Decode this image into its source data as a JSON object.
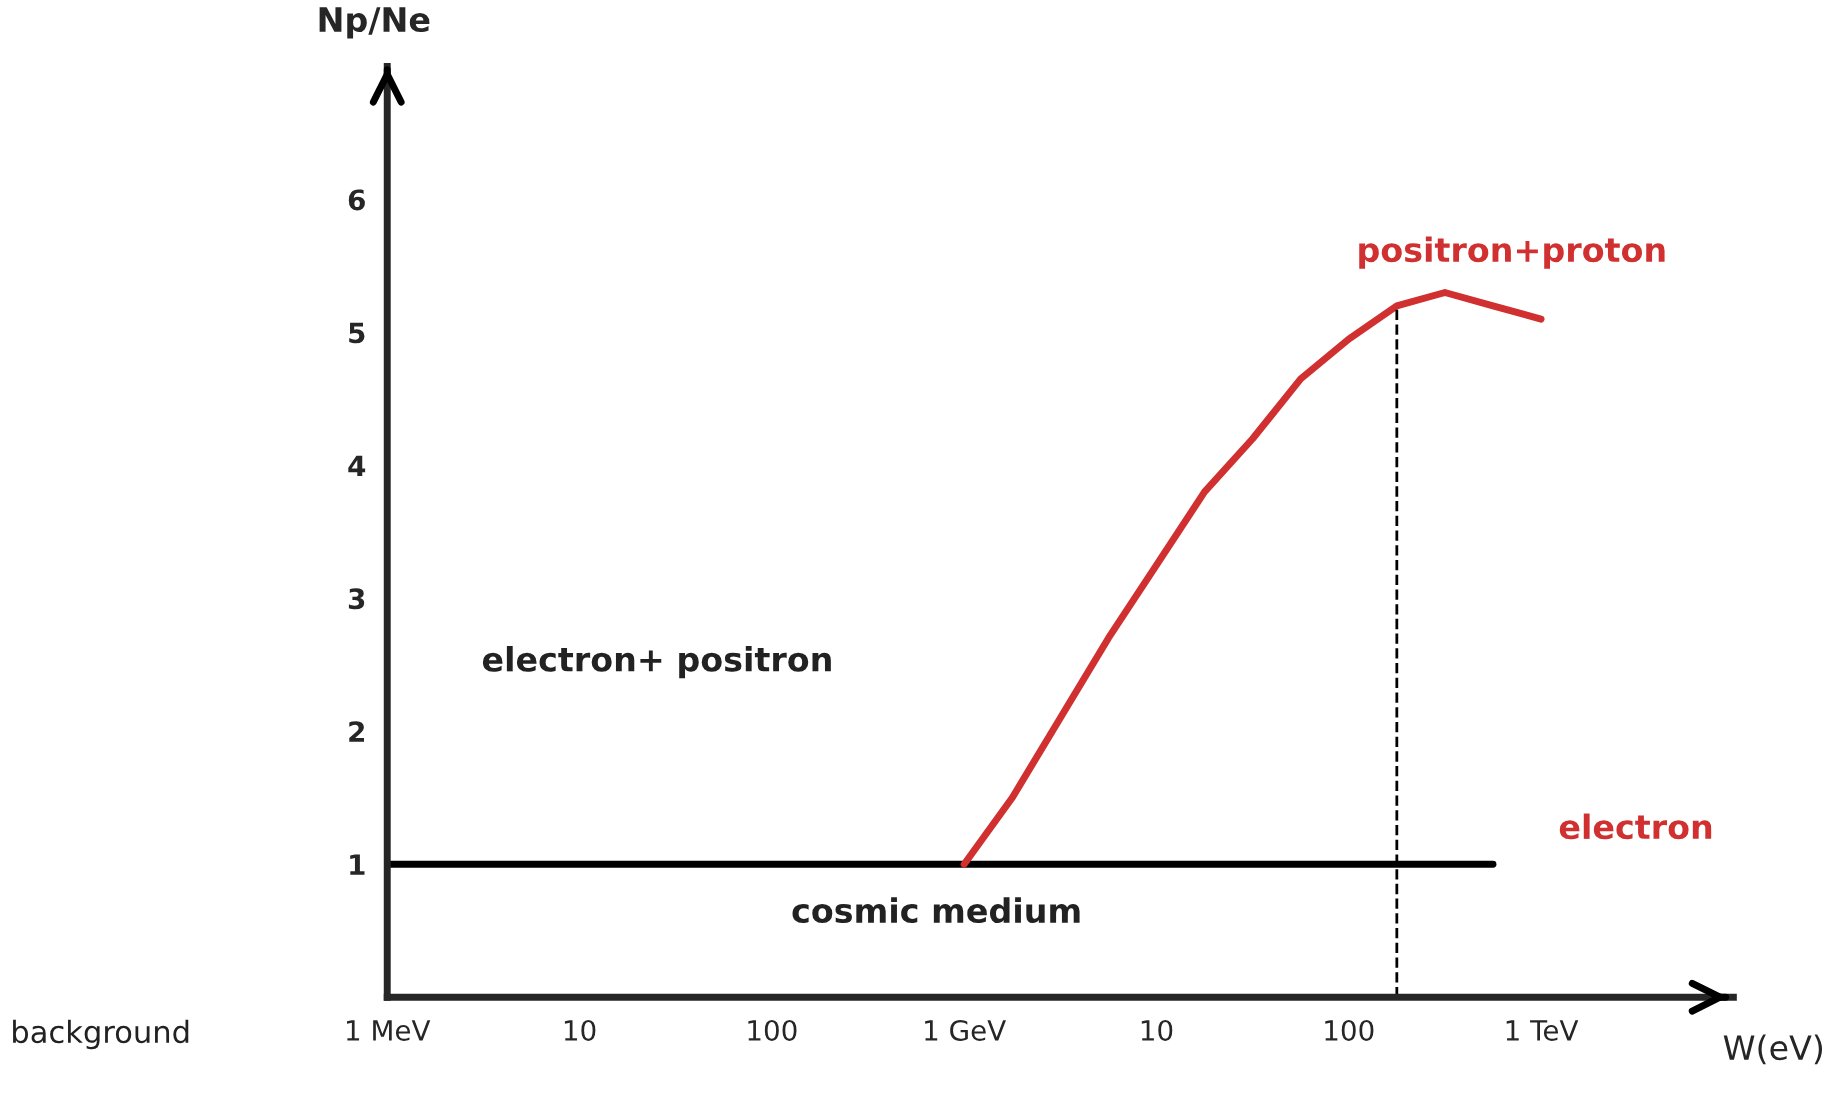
{
  "chart_data": {
    "type": "line",
    "xlabel": "W(eV)",
    "ylabel": "Np/Ne",
    "grid": false,
    "marker": "none",
    "line_style": "solid",
    "ylim": [
      0,
      7
    ],
    "yticks": [
      1,
      2,
      3,
      4,
      5,
      6
    ],
    "categories": [
      "1 MeV",
      null,
      null,
      null,
      "10",
      null,
      null,
      null,
      "100",
      null,
      null,
      null,
      "1 GeV",
      null,
      null,
      null,
      "10",
      null,
      null,
      null,
      "100",
      null,
      null,
      null,
      "1 TeV",
      null,
      null,
      null
    ],
    "series": [
      {
        "color": "#000000",
        "values": [
          1,
          1,
          1,
          1,
          1,
          1,
          1,
          1,
          1,
          1,
          1,
          1,
          1,
          1,
          1,
          1,
          1,
          1,
          1,
          1,
          1,
          1,
          1,
          1,
          null,
          null,
          null,
          null
        ]
      },
      {
        "color": "#d03030",
        "values": [
          null,
          null,
          null,
          null,
          null,
          null,
          null,
          null,
          null,
          null,
          null,
          null,
          1,
          1.5,
          2.1,
          2.7,
          3.25,
          3.8,
          4.2,
          4.65,
          4.95,
          5.2,
          5.3,
          5.2,
          5.1,
          null,
          null,
          null
        ]
      }
    ],
    "annotations": [
      "electron+ positron",
      "positron+proton",
      "electron",
      "cosmic medium",
      "background"
    ]
  }
}
